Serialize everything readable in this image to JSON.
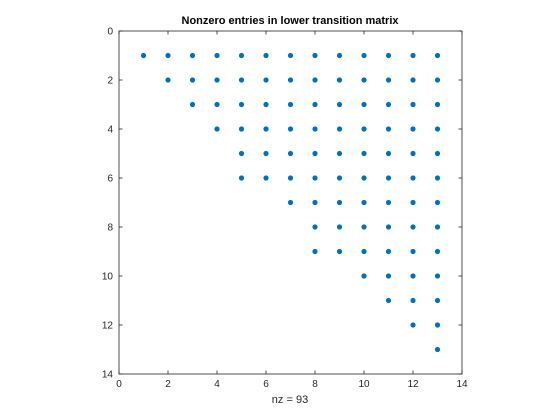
{
  "chart_data": {
    "type": "scatter",
    "title": "Nonzero entries in lower transition matrix",
    "xlabel": "nz = 93",
    "ylabel": "",
    "xlim": [
      0,
      14
    ],
    "ylim": [
      0,
      14
    ],
    "y_reversed": true,
    "x_ticks": [
      "0",
      "2",
      "4",
      "6",
      "8",
      "10",
      "12",
      "14"
    ],
    "y_ticks": [
      "0",
      "2",
      "4",
      "6",
      "8",
      "10",
      "12",
      "14"
    ],
    "grid": false,
    "marker_color": "#0072BD",
    "axis_color": "#262626",
    "rows": [
      {
        "row": 1,
        "cols": [
          1,
          2,
          3,
          4,
          5,
          6,
          7,
          8,
          9,
          10,
          11,
          12,
          13
        ]
      },
      {
        "row": 2,
        "cols": [
          2,
          3,
          4,
          5,
          6,
          7,
          8,
          9,
          10,
          11,
          12,
          13
        ]
      },
      {
        "row": 3,
        "cols": [
          3,
          4,
          5,
          6,
          7,
          8,
          9,
          10,
          11,
          12,
          13
        ]
      },
      {
        "row": 4,
        "cols": [
          4,
          5,
          6,
          7,
          8,
          9,
          10,
          11,
          12,
          13
        ]
      },
      {
        "row": 5,
        "cols": [
          5,
          6,
          7,
          8,
          9,
          10,
          11,
          12,
          13
        ]
      },
      {
        "row": 6,
        "cols": [
          5,
          6,
          7,
          8,
          9,
          10,
          11,
          12,
          13
        ]
      },
      {
        "row": 7,
        "cols": [
          7,
          8,
          9,
          10,
          11,
          12,
          13
        ]
      },
      {
        "row": 8,
        "cols": [
          8,
          9,
          10,
          11,
          12,
          13
        ]
      },
      {
        "row": 9,
        "cols": [
          8,
          9,
          10,
          11,
          12,
          13
        ]
      },
      {
        "row": 10,
        "cols": [
          10,
          11,
          12,
          13
        ]
      },
      {
        "row": 11,
        "cols": [
          11,
          12,
          13
        ]
      },
      {
        "row": 12,
        "cols": [
          12,
          13
        ]
      },
      {
        "row": 13,
        "cols": [
          13
        ]
      }
    ]
  }
}
